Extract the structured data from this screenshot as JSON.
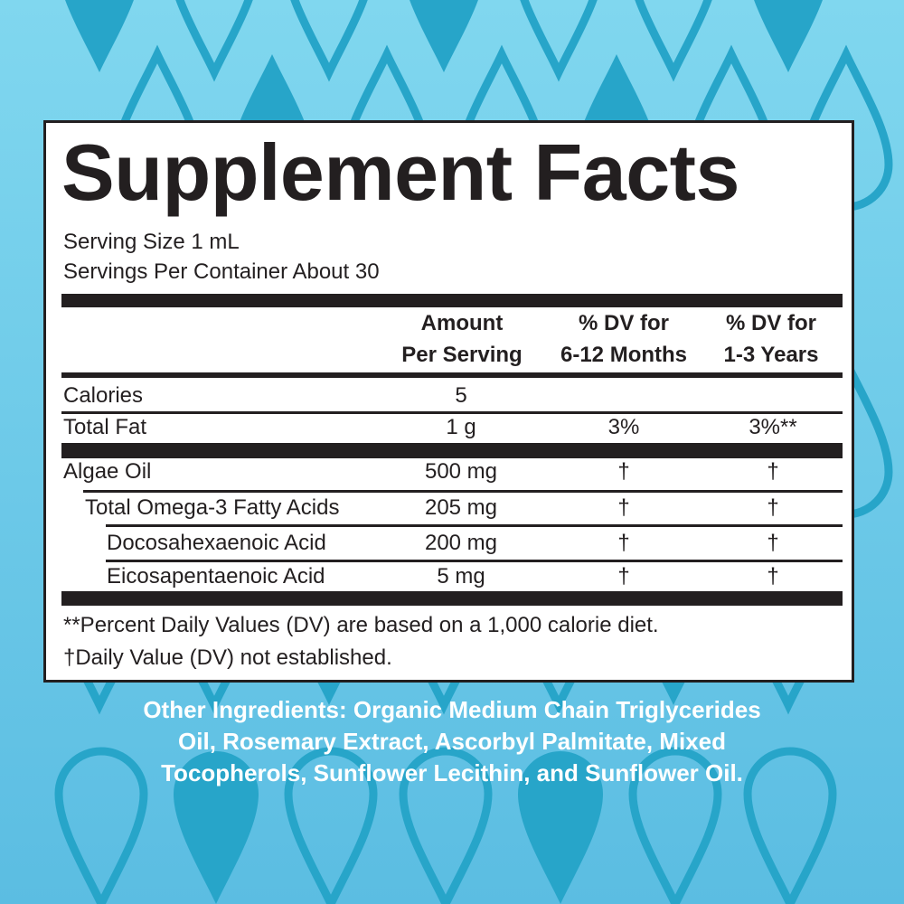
{
  "colors": {
    "background_top": "#80d7ef",
    "background_bottom": "#5bbde2",
    "drop": "#27a5c9",
    "ink": "#231f20",
    "panel": "#ffffff"
  },
  "background_icon": "water-drop-pattern",
  "label": {
    "title": "Supplement Facts",
    "serving_size": "Serving Size 1 mL",
    "servings_per_container": "Servings Per Container About 30",
    "headers": {
      "amount": [
        "Amount",
        "Per Serving"
      ],
      "dv_infant": [
        "% DV for",
        "6-12 Months"
      ],
      "dv_child": [
        "% DV for",
        "1-3 Years"
      ]
    },
    "rows": [
      {
        "name": "Calories",
        "amount": "5",
        "dv_infant": "",
        "dv_child": ""
      },
      {
        "name": "Total Fat",
        "amount": "1 g",
        "dv_infant": "3%",
        "dv_child": "3%**"
      },
      {
        "name": "Algae Oil",
        "amount": "500 mg",
        "dv_infant": "†",
        "dv_child": "†"
      },
      {
        "name": "Total Omega-3 Fatty Acids",
        "amount": "205 mg",
        "dv_infant": "†",
        "dv_child": "†"
      },
      {
        "name": "Docosahexaenoic Acid",
        "amount": "200 mg",
        "dv_infant": "†",
        "dv_child": "†"
      },
      {
        "name": "Eicosapentaenoic Acid",
        "amount": "5 mg",
        "dv_infant": "†",
        "dv_child": "†"
      }
    ],
    "footnotes": [
      "**Percent Daily Values (DV) are based on a 1,000 calorie diet.",
      "†Daily Value (DV) not established."
    ]
  },
  "other_ingredients": [
    "Other Ingredients: Organic Medium Chain Triglycerides",
    "Oil, Rosemary Extract, Ascorbyl Palmitate, Mixed",
    "Tocopherols, Sunflower Lecithin, and Sunflower Oil."
  ]
}
